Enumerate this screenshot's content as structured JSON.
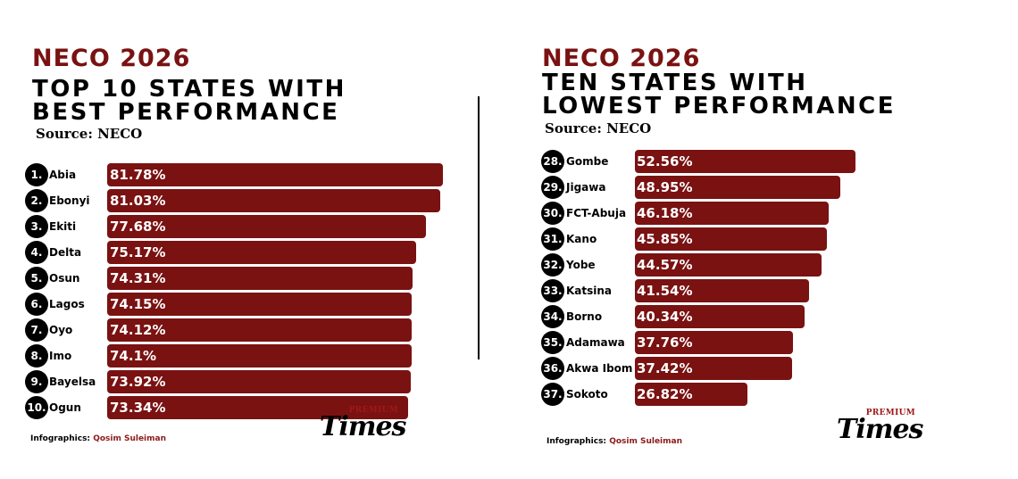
{
  "chart_data": [
    {
      "type": "bar",
      "orientation": "horizontal",
      "kicker": "NECO 2026",
      "title_line1": "TOP 10 STATES WITH",
      "title_line2": "BEST  PERFORMANCE",
      "source": "Source: NECO",
      "credit_label": "Infographics:",
      "credit_name": "Qosim Suleiman",
      "ranks": [
        "1.",
        "2.",
        "3.",
        "4.",
        "5.",
        "6.",
        "7.",
        "8.",
        "9.",
        "10."
      ],
      "categories": [
        "Abia",
        "Ebonyi",
        "Ekiti",
        "Delta",
        "Osun",
        "Lagos",
        "Oyo",
        "Imo",
        "Bayelsa",
        "Ogun"
      ],
      "values": [
        81.78,
        81.03,
        77.68,
        75.17,
        74.31,
        74.15,
        74.12,
        74.1,
        73.92,
        73.34
      ],
      "value_labels": [
        "81.78%",
        "81.03%",
        "77.68%",
        "75.17%",
        "74.31%",
        "74.15%",
        "74.12%",
        "74.1%",
        "73.92%",
        "73.34%"
      ],
      "bar_color": "#7a1212"
    },
    {
      "type": "bar",
      "orientation": "horizontal",
      "kicker": "NECO 2026",
      "title_line1": "TEN STATES WITH",
      "title_line2": "LOWEST  PERFORMANCE",
      "source": "Source: NECO",
      "credit_label": "Infographics:",
      "credit_name": "Qosim Suleiman",
      "ranks": [
        "28.",
        "29.",
        "30.",
        "31.",
        "32.",
        "33.",
        "34.",
        "35.",
        "36.",
        "37."
      ],
      "categories": [
        "Gombe",
        "Jigawa",
        "FCT-Abuja",
        "Kano",
        "Yobe",
        "Katsina",
        "Borno",
        "Adamawa",
        "Akwa Ibom",
        "Sokoto"
      ],
      "values": [
        52.56,
        48.95,
        46.18,
        45.85,
        44.57,
        41.54,
        40.34,
        37.76,
        37.42,
        26.82
      ],
      "value_labels": [
        "52.56%",
        "48.95%",
        "46.18%",
        "45.85%",
        "44.57%",
        "41.54%",
        "40.34%",
        "37.76%",
        "37.42%",
        "26.82%"
      ],
      "bar_color": "#7a1212"
    }
  ],
  "logo": {
    "premium": "PREMIUM",
    "times": "Times"
  },
  "colors": {
    "accent": "#7a1212",
    "text": "#000000",
    "background": "#ffffff"
  }
}
